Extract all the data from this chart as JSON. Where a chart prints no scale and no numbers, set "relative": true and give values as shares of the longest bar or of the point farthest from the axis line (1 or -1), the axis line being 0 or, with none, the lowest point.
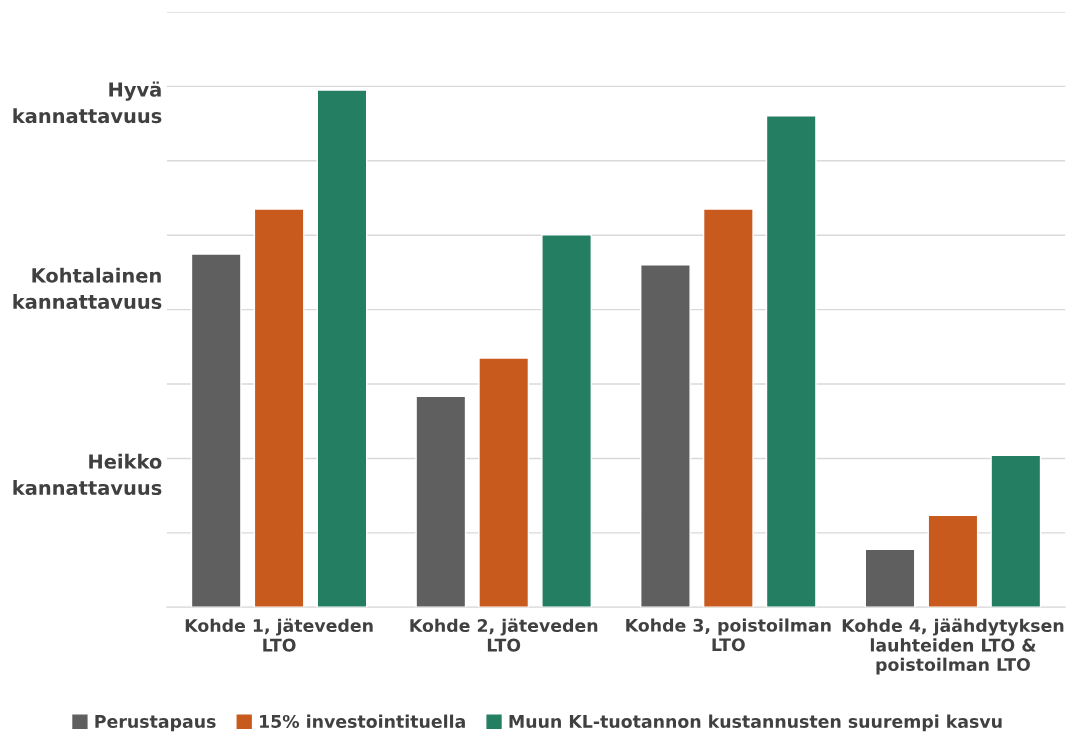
{
  "chart_data": {
    "type": "bar",
    "relative": true,
    "categories": [
      "Kohde 1, jäteveden\nLTO",
      "Kohde 2, jäteveden\nLTO",
      "Kohde 3, poistoilman\nLTO",
      "Kohde 4, jäähdytyksen\nlauhteiden LTO &\npoistoilman LTO"
    ],
    "series": [
      {
        "name": "Perustapaus",
        "color": "#5f5f5f",
        "values": [
          0.683,
          0.408,
          0.662,
          0.112
        ]
      },
      {
        "name": "15% investointituella",
        "color": "#c85a1e",
        "values": [
          0.77,
          0.482,
          0.77,
          0.178
        ]
      },
      {
        "name": "Muun KL-tuotannon kustannusten suurempi kasvu",
        "color": "#247f62",
        "values": [
          1,
          0.72,
          0.95,
          0.294
        ]
      }
    ],
    "annotations": [
      "Hyvä\nkannattavuus",
      "Kohtalainen\nkannattavuus",
      "Heikko\nkannattavuus"
    ],
    "grid": "y",
    "legend": "bottom"
  }
}
